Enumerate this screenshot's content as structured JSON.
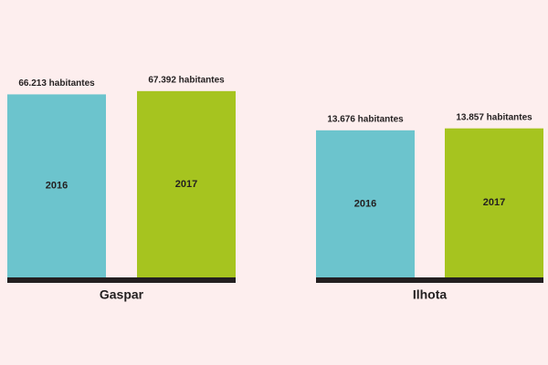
{
  "chart_data": [
    {
      "type": "bar",
      "title": "Gaspar",
      "categories": [
        "2016",
        "2017"
      ],
      "values": [
        66213,
        67392
      ],
      "value_labels": [
        "66.213 habitantes",
        "67.392 habitantes"
      ],
      "colors": [
        "#6cc4cd",
        "#a6c41f"
      ],
      "ylim": [
        0,
        68000
      ]
    },
    {
      "type": "bar",
      "title": "Ilhota",
      "categories": [
        "2016",
        "2017"
      ],
      "values": [
        13676,
        13857
      ],
      "value_labels": [
        "13.676 habitantes",
        "13.857 habitantes"
      ],
      "colors": [
        "#6cc4cd",
        "#a6c41f"
      ],
      "ylim": [
        0,
        14000
      ]
    }
  ]
}
